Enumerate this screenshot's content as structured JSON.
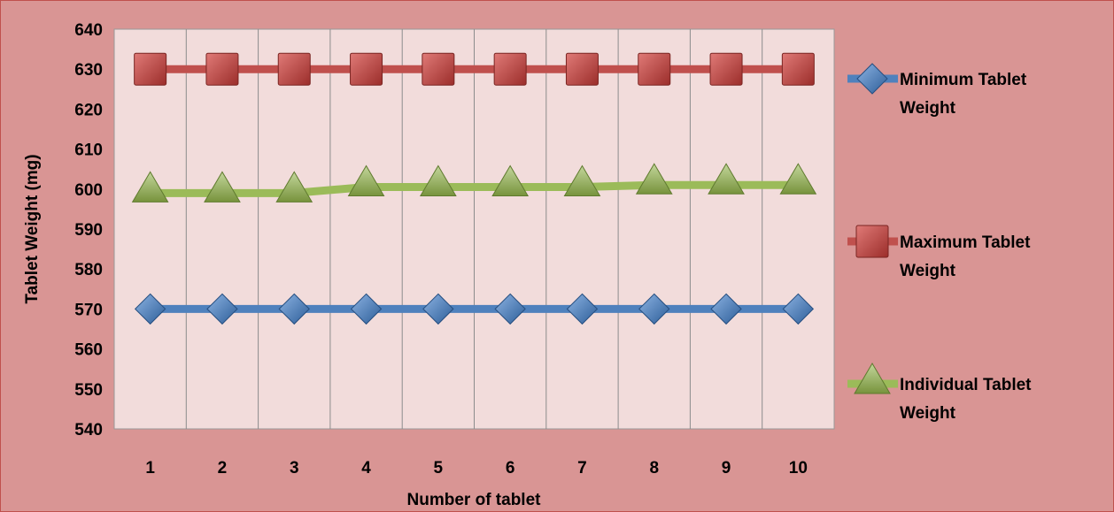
{
  "chart_data": {
    "type": "line",
    "title": "",
    "xlabel": "Number of tablet",
    "ylabel": "Tablet Weight (mg)",
    "categories": [
      "1",
      "2",
      "3",
      "4",
      "5",
      "6",
      "7",
      "8",
      "9",
      "10"
    ],
    "ylim": [
      540,
      640
    ],
    "yticks": [
      540,
      550,
      560,
      570,
      580,
      590,
      600,
      610,
      620,
      630,
      640
    ],
    "grid": {
      "horizontal": false,
      "vertical": true
    },
    "legend_position": "right",
    "series": [
      {
        "name_lines": [
          "Minimum Tablet",
          "Weight"
        ],
        "marker": "diamond",
        "color": "#4f81bd",
        "values": [
          570,
          570,
          570,
          570,
          570,
          570,
          570,
          570,
          570,
          570
        ]
      },
      {
        "name_lines": [
          "Maximum Tablet",
          "Weight"
        ],
        "marker": "square",
        "color": "#c0504d",
        "values": [
          630,
          630,
          630,
          630,
          630,
          630,
          630,
          630,
          630,
          630
        ]
      },
      {
        "name_lines": [
          "Individual Tablet",
          "Weight"
        ],
        "marker": "triangle",
        "color": "#9bbb59",
        "values": [
          599,
          599,
          599,
          600.5,
          600.5,
          600.5,
          600.5,
          601,
          601,
          601
        ]
      }
    ],
    "colors": {
      "background": "#d99594",
      "plot_area": "#f2dcdb",
      "border": "#c0504d"
    }
  }
}
